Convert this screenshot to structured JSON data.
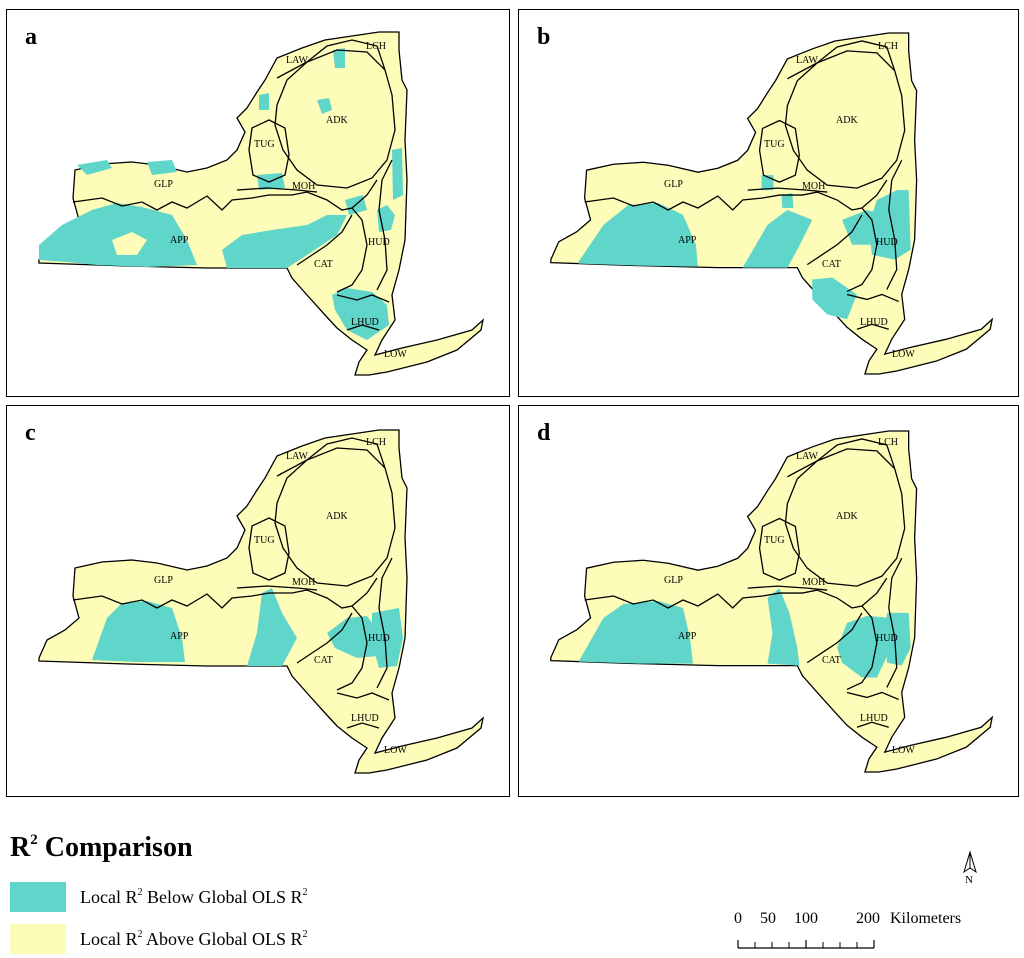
{
  "panels": [
    {
      "letter": "a"
    },
    {
      "letter": "b"
    },
    {
      "letter": "c"
    },
    {
      "letter": "d"
    }
  ],
  "regions": [
    "LCH",
    "LAW",
    "ADK",
    "TUG",
    "GLP",
    "MOH",
    "APP",
    "HUD",
    "CAT",
    "LHUD",
    "LOW"
  ],
  "legend": {
    "title_main": "R",
    "title_sup": "2",
    "title_rest": " Comparison",
    "items": [
      {
        "pre": "Local R",
        "sup1": "2",
        "mid": " Below Global OLS R",
        "sup2": "2",
        "color": "#5fd6c9"
      },
      {
        "pre": "Local R",
        "sup1": "2",
        "mid": " Above Global OLS R",
        "sup2": "2",
        "color": "#fdfcb8"
      }
    ]
  },
  "scale_bar": {
    "ticks": [
      "0",
      "50",
      "100",
      "200"
    ],
    "unit": "Kilometers"
  },
  "north_label": "N",
  "colors": {
    "below": "#5fd6c9",
    "above": "#fdfcb8",
    "outline": "#000000"
  }
}
